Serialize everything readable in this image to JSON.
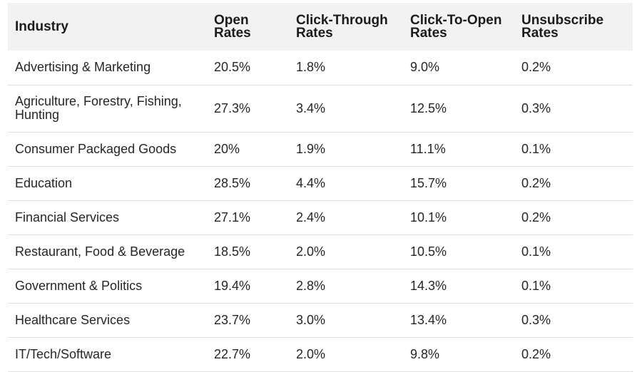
{
  "table": {
    "headers": [
      [
        "Industry"
      ],
      [
        "Open",
        "Rates"
      ],
      [
        "Click-Through",
        "Rates"
      ],
      [
        "Click-To-Open",
        "Rates"
      ],
      [
        "Unsubscribe",
        "Rates"
      ]
    ],
    "rows": [
      {
        "industry": "Advertising & Marketing",
        "open": "20.5%",
        "ctr": "1.8%",
        "cto": "9.0%",
        "unsub": "0.2%"
      },
      {
        "industry": "Agriculture, Forestry, Fishing, Hunting",
        "open": "27.3%",
        "ctr": "3.4%",
        "cto": "12.5%",
        "unsub": "0.3%"
      },
      {
        "industry": "Consumer Packaged Goods",
        "open": "20%",
        "ctr": "1.9%",
        "cto": "11.1%",
        "unsub": "0.1%"
      },
      {
        "industry": "Education",
        "open": "28.5%",
        "ctr": "4.4%",
        "cto": "15.7%",
        "unsub": "0.2%"
      },
      {
        "industry": "Financial Services",
        "open": "27.1%",
        "ctr": "2.4%",
        "cto": "10.1%",
        "unsub": "0.2%"
      },
      {
        "industry": "Restaurant, Food & Beverage",
        "open": "18.5%",
        "ctr": "2.0%",
        "cto": "10.5%",
        "unsub": "0.1%"
      },
      {
        "industry": "Government & Politics",
        "open": "19.4%",
        "ctr": "2.8%",
        "cto": "14.3%",
        "unsub": "0.1%"
      },
      {
        "industry": "Healthcare Services",
        "open": "23.7%",
        "ctr": "3.0%",
        "cto": "13.4%",
        "unsub": "0.3%"
      },
      {
        "industry": "IT/Tech/Software",
        "open": "22.7%",
        "ctr": "2.0%",
        "cto": "9.8%",
        "unsub": "0.2%"
      }
    ]
  }
}
